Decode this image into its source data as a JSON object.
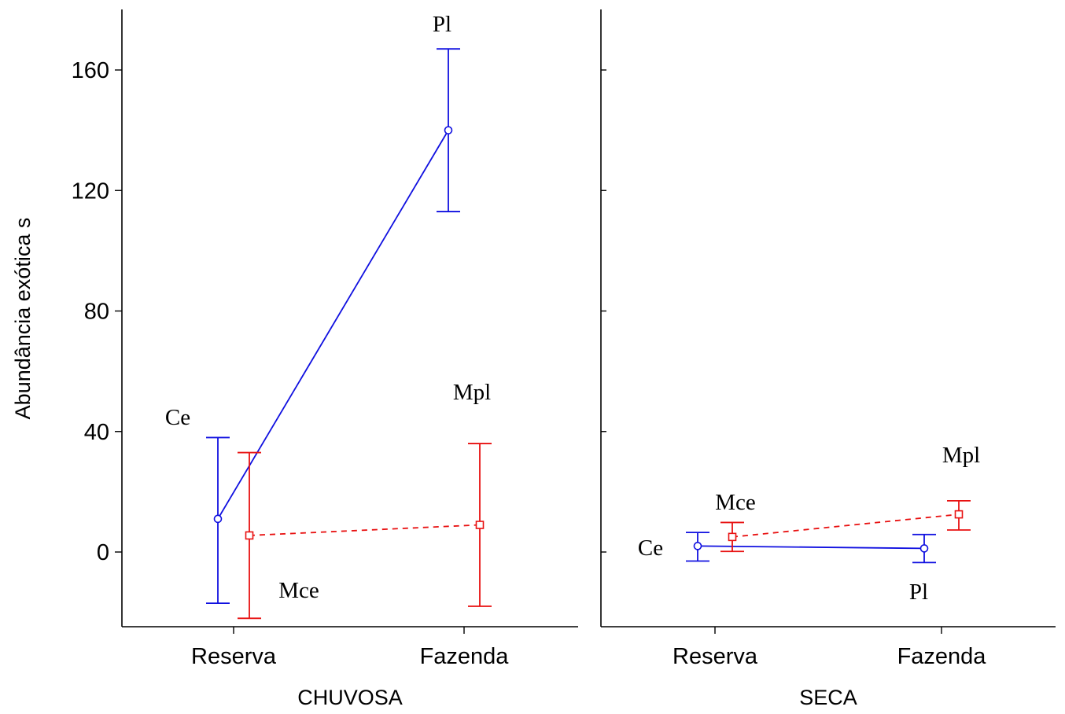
{
  "chart_data": {
    "type": "line",
    "ylabel": "Abundância exótica s",
    "ylim": [
      -25,
      180
    ],
    "y_ticks": [
      0,
      40,
      80,
      120,
      160
    ],
    "categories": [
      "Reserva",
      "Fazenda"
    ],
    "colors": {
      "blue": "#1010e0",
      "red": "#e81010"
    },
    "panels": [
      {
        "xlabel": "CHUVOSA",
        "series": [
          {
            "color": "blue",
            "marker": "circle",
            "dash": "solid",
            "points": [
              {
                "category": "Reserva",
                "value": 11,
                "lower": -17,
                "upper": 38
              },
              {
                "category": "Fazenda",
                "value": 140,
                "lower": 113,
                "upper": 167
              }
            ]
          },
          {
            "color": "red",
            "marker": "square",
            "dash": "dashed",
            "points": [
              {
                "category": "Reserva",
                "value": 5.5,
                "lower": -22,
                "upper": 33
              },
              {
                "category": "Fazenda",
                "value": 9,
                "lower": -18,
                "upper": 36
              }
            ]
          }
        ],
        "annotations": [
          {
            "text": "Ce"
          },
          {
            "text": "Mce"
          },
          {
            "text": "Pl"
          },
          {
            "text": "Mpl"
          }
        ]
      },
      {
        "xlabel": "SECA",
        "series": [
          {
            "color": "blue",
            "marker": "circle",
            "dash": "solid",
            "points": [
              {
                "category": "Reserva",
                "value": 2,
                "lower": -3,
                "upper": 6.5
              },
              {
                "category": "Fazenda",
                "value": 1.2,
                "lower": -3.5,
                "upper": 5.8
              }
            ]
          },
          {
            "color": "red",
            "marker": "square",
            "dash": "dashed",
            "points": [
              {
                "category": "Reserva",
                "value": 5,
                "lower": 0.2,
                "upper": 9.8
              },
              {
                "category": "Fazenda",
                "value": 12.5,
                "lower": 7.3,
                "upper": 17
              }
            ]
          }
        ],
        "annotations": [
          {
            "text": "Ce"
          },
          {
            "text": "Mce"
          },
          {
            "text": "Pl"
          },
          {
            "text": "Mpl"
          }
        ]
      }
    ]
  }
}
